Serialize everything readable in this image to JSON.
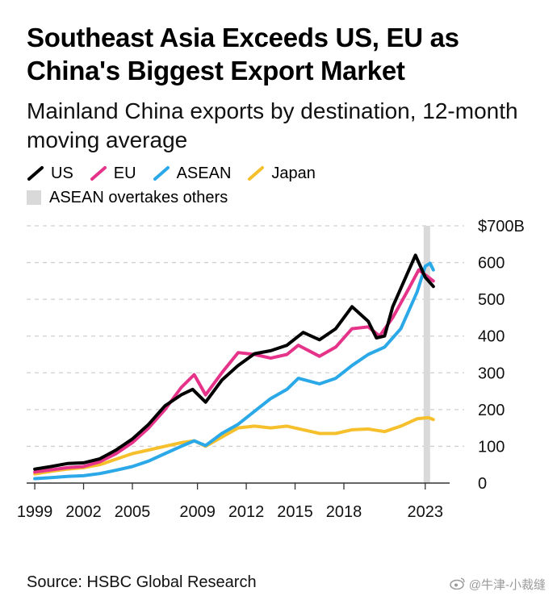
{
  "chart_data": {
    "type": "line",
    "title": "Southeast Asia Exceeds US, EU as China's Biggest Export Market",
    "subtitle": "Mainland China exports by destination, 12-month moving average",
    "ylabel": "",
    "xlabel": "",
    "y_unit_label": "$700B",
    "ylim": [
      0,
      700
    ],
    "xlim": [
      1998.5,
      2024.5
    ],
    "y_ticks": [
      0,
      100,
      200,
      300,
      400,
      500,
      600,
      700
    ],
    "y_tick_labels": [
      "0",
      "100",
      "200",
      "300",
      "400",
      "500",
      "600",
      "$700B"
    ],
    "x_ticks": [
      1999,
      2002,
      2005,
      2009,
      2012,
      2015,
      2018,
      2023
    ],
    "x_tick_labels": [
      "1999",
      "2002",
      "2005",
      "2009",
      "2012",
      "2015",
      "2018",
      "2023"
    ],
    "grid": true,
    "legend_position": "top-left",
    "shaded_region": {
      "x": [
        2022.9,
        2023.3
      ],
      "label": "ASEAN overtakes others",
      "color": "#d9d9d9"
    },
    "series": [
      {
        "name": "US",
        "color": "#000000",
        "points": [
          [
            1999,
            38
          ],
          [
            2000,
            45
          ],
          [
            2001,
            53
          ],
          [
            2002,
            55
          ],
          [
            2003,
            66
          ],
          [
            2004,
            90
          ],
          [
            2005,
            120
          ],
          [
            2006,
            160
          ],
          [
            2007,
            210
          ],
          [
            2008,
            240
          ],
          [
            2008.7,
            255
          ],
          [
            2009.5,
            220
          ],
          [
            2010.5,
            280
          ],
          [
            2011.5,
            320
          ],
          [
            2012.5,
            352
          ],
          [
            2013.5,
            360
          ],
          [
            2014.5,
            375
          ],
          [
            2015.5,
            410
          ],
          [
            2016.5,
            390
          ],
          [
            2017.5,
            420
          ],
          [
            2018.5,
            480
          ],
          [
            2019.5,
            440
          ],
          [
            2020,
            395
          ],
          [
            2020.5,
            400
          ],
          [
            2021,
            480
          ],
          [
            2022,
            580
          ],
          [
            2022.4,
            620
          ],
          [
            2022.7,
            590
          ],
          [
            2023,
            560
          ],
          [
            2023.5,
            535
          ]
        ]
      },
      {
        "name": "EU",
        "color": "#e6338a",
        "points": [
          [
            1999,
            30
          ],
          [
            2000,
            36
          ],
          [
            2001,
            42
          ],
          [
            2002,
            45
          ],
          [
            2003,
            58
          ],
          [
            2004,
            80
          ],
          [
            2005,
            110
          ],
          [
            2006,
            150
          ],
          [
            2007,
            200
          ],
          [
            2008,
            260
          ],
          [
            2008.8,
            295
          ],
          [
            2009.5,
            240
          ],
          [
            2010.5,
            300
          ],
          [
            2011.5,
            355
          ],
          [
            2012.5,
            350
          ],
          [
            2013.5,
            340
          ],
          [
            2014.5,
            350
          ],
          [
            2015.2,
            375
          ],
          [
            2016.5,
            345
          ],
          [
            2017.5,
            370
          ],
          [
            2018.5,
            420
          ],
          [
            2019.5,
            425
          ],
          [
            2020.2,
            400
          ],
          [
            2021,
            450
          ],
          [
            2022,
            530
          ],
          [
            2022.6,
            580
          ],
          [
            2023.2,
            560
          ],
          [
            2023.5,
            550
          ]
        ]
      },
      {
        "name": "ASEAN",
        "color": "#2aa8e8",
        "points": [
          [
            1999,
            12
          ],
          [
            2000,
            15
          ],
          [
            2001,
            18
          ],
          [
            2002,
            20
          ],
          [
            2003,
            26
          ],
          [
            2004,
            35
          ],
          [
            2005,
            45
          ],
          [
            2006,
            60
          ],
          [
            2007,
            80
          ],
          [
            2008,
            100
          ],
          [
            2008.8,
            115
          ],
          [
            2009.5,
            102
          ],
          [
            2010.5,
            135
          ],
          [
            2011.5,
            160
          ],
          [
            2012.5,
            195
          ],
          [
            2013.5,
            230
          ],
          [
            2014.5,
            255
          ],
          [
            2015.2,
            285
          ],
          [
            2016.5,
            270
          ],
          [
            2017.5,
            285
          ],
          [
            2018.5,
            320
          ],
          [
            2019.5,
            350
          ],
          [
            2020.5,
            370
          ],
          [
            2021.5,
            420
          ],
          [
            2022.5,
            520
          ],
          [
            2023,
            590
          ],
          [
            2023.3,
            598
          ],
          [
            2023.5,
            580
          ]
        ]
      },
      {
        "name": "Japan",
        "color": "#f5c02c",
        "points": [
          [
            1999,
            25
          ],
          [
            2000,
            32
          ],
          [
            2001,
            38
          ],
          [
            2002,
            42
          ],
          [
            2003,
            50
          ],
          [
            2004,
            65
          ],
          [
            2005,
            80
          ],
          [
            2006,
            90
          ],
          [
            2007,
            100
          ],
          [
            2008,
            110
          ],
          [
            2008.8,
            115
          ],
          [
            2009.5,
            100
          ],
          [
            2010.5,
            125
          ],
          [
            2011.5,
            150
          ],
          [
            2012.5,
            155
          ],
          [
            2013.5,
            150
          ],
          [
            2014.5,
            155
          ],
          [
            2015.5,
            145
          ],
          [
            2016.5,
            135
          ],
          [
            2017.5,
            135
          ],
          [
            2018.5,
            145
          ],
          [
            2019.5,
            147
          ],
          [
            2020.5,
            140
          ],
          [
            2021.5,
            155
          ],
          [
            2022.5,
            175
          ],
          [
            2023.2,
            178
          ],
          [
            2023.5,
            173
          ]
        ]
      }
    ]
  },
  "source": "Source: HSBC Global Research",
  "watermark": "@牛津-小裁缝",
  "icons": {
    "watermark_icon": "weibo-icon"
  }
}
